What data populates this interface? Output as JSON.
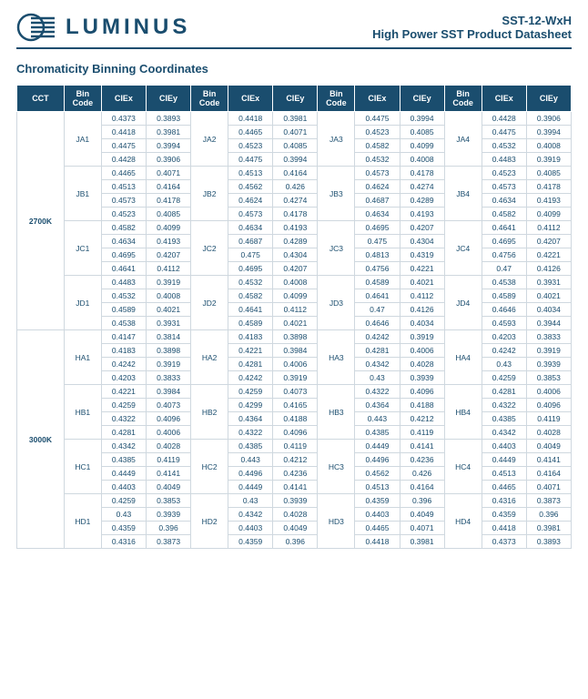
{
  "header": {
    "brand": "LUMINUS",
    "product_code": "SST-12-WxH",
    "product_desc": "High Power SST Product Datasheet"
  },
  "section_title": "Chromaticity Binning Coordinates",
  "columns": {
    "cct": "CCT",
    "bin": "Bin Code",
    "ciex": "CIEx",
    "ciey": "CIEy"
  },
  "groups": [
    {
      "cct": "2700K",
      "rows": [
        {
          "letter": "A",
          "bins": [
            {
              "code": "JA1",
              "pts": [
                [
                  0.4373,
                  0.3893
                ],
                [
                  0.4418,
                  0.3981
                ],
                [
                  0.4475,
                  0.3994
                ],
                [
                  0.4428,
                  0.3906
                ]
              ]
            },
            {
              "code": "JA2",
              "pts": [
                [
                  0.4418,
                  0.3981
                ],
                [
                  0.4465,
                  0.4071
                ],
                [
                  0.4523,
                  0.4085
                ],
                [
                  0.4475,
                  0.3994
                ]
              ]
            },
            {
              "code": "JA3",
              "pts": [
                [
                  0.4475,
                  0.3994
                ],
                [
                  0.4523,
                  0.4085
                ],
                [
                  0.4582,
                  0.4099
                ],
                [
                  0.4532,
                  0.4008
                ]
              ]
            },
            {
              "code": "JA4",
              "pts": [
                [
                  0.4428,
                  0.3906
                ],
                [
                  0.4475,
                  0.3994
                ],
                [
                  0.4532,
                  0.4008
                ],
                [
                  0.4483,
                  0.3919
                ]
              ]
            }
          ]
        },
        {
          "letter": "B",
          "bins": [
            {
              "code": "JB1",
              "pts": [
                [
                  0.4465,
                  0.4071
                ],
                [
                  0.4513,
                  0.4164
                ],
                [
                  0.4573,
                  0.4178
                ],
                [
                  0.4523,
                  0.4085
                ]
              ]
            },
            {
              "code": "JB2",
              "pts": [
                [
                  0.4513,
                  0.4164
                ],
                [
                  0.4562,
                  0.426
                ],
                [
                  0.4624,
                  0.4274
                ],
                [
                  0.4573,
                  0.4178
                ]
              ]
            },
            {
              "code": "JB3",
              "pts": [
                [
                  0.4573,
                  0.4178
                ],
                [
                  0.4624,
                  0.4274
                ],
                [
                  0.4687,
                  0.4289
                ],
                [
                  0.4634,
                  0.4193
                ]
              ]
            },
            {
              "code": "JB4",
              "pts": [
                [
                  0.4523,
                  0.4085
                ],
                [
                  0.4573,
                  0.4178
                ],
                [
                  0.4634,
                  0.4193
                ],
                [
                  0.4582,
                  0.4099
                ]
              ]
            }
          ]
        },
        {
          "letter": "C",
          "bins": [
            {
              "code": "JC1",
              "pts": [
                [
                  0.4582,
                  0.4099
                ],
                [
                  0.4634,
                  0.4193
                ],
                [
                  0.4695,
                  0.4207
                ],
                [
                  0.4641,
                  0.4112
                ]
              ]
            },
            {
              "code": "JC2",
              "pts": [
                [
                  0.4634,
                  0.4193
                ],
                [
                  0.4687,
                  0.4289
                ],
                [
                  0.475,
                  0.4304
                ],
                [
                  0.4695,
                  0.4207
                ]
              ]
            },
            {
              "code": "JC3",
              "pts": [
                [
                  0.4695,
                  0.4207
                ],
                [
                  0.475,
                  0.4304
                ],
                [
                  0.4813,
                  0.4319
                ],
                [
                  0.4756,
                  0.4221
                ]
              ]
            },
            {
              "code": "JC4",
              "pts": [
                [
                  0.4641,
                  0.4112
                ],
                [
                  0.4695,
                  0.4207
                ],
                [
                  0.4756,
                  0.4221
                ],
                [
                  0.47,
                  0.4126
                ]
              ]
            }
          ]
        },
        {
          "letter": "D",
          "bins": [
            {
              "code": "JD1",
              "pts": [
                [
                  0.4483,
                  0.3919
                ],
                [
                  0.4532,
                  0.4008
                ],
                [
                  0.4589,
                  0.4021
                ],
                [
                  0.4538,
                  0.3931
                ]
              ]
            },
            {
              "code": "JD2",
              "pts": [
                [
                  0.4532,
                  0.4008
                ],
                [
                  0.4582,
                  0.4099
                ],
                [
                  0.4641,
                  0.4112
                ],
                [
                  0.4589,
                  0.4021
                ]
              ]
            },
            {
              "code": "JD3",
              "pts": [
                [
                  0.4589,
                  0.4021
                ],
                [
                  0.4641,
                  0.4112
                ],
                [
                  0.47,
                  0.4126
                ],
                [
                  0.4646,
                  0.4034
                ]
              ]
            },
            {
              "code": "JD4",
              "pts": [
                [
                  0.4538,
                  0.3931
                ],
                [
                  0.4589,
                  0.4021
                ],
                [
                  0.4646,
                  0.4034
                ],
                [
                  0.4593,
                  0.3944
                ]
              ]
            }
          ]
        }
      ]
    },
    {
      "cct": "3000K",
      "rows": [
        {
          "letter": "A",
          "bins": [
            {
              "code": "HA1",
              "pts": [
                [
                  0.4147,
                  0.3814
                ],
                [
                  0.4183,
                  0.3898
                ],
                [
                  0.4242,
                  0.3919
                ],
                [
                  0.4203,
                  0.3833
                ]
              ]
            },
            {
              "code": "HA2",
              "pts": [
                [
                  0.4183,
                  0.3898
                ],
                [
                  0.4221,
                  0.3984
                ],
                [
                  0.4281,
                  0.4006
                ],
                [
                  0.4242,
                  0.3919
                ]
              ]
            },
            {
              "code": "HA3",
              "pts": [
                [
                  0.4242,
                  0.3919
                ],
                [
                  0.4281,
                  0.4006
                ],
                [
                  0.4342,
                  0.4028
                ],
                [
                  0.43,
                  0.3939
                ]
              ]
            },
            {
              "code": "HA4",
              "pts": [
                [
                  0.4203,
                  0.3833
                ],
                [
                  0.4242,
                  0.3919
                ],
                [
                  0.43,
                  0.3939
                ],
                [
                  0.4259,
                  0.3853
                ]
              ]
            }
          ]
        },
        {
          "letter": "B",
          "bins": [
            {
              "code": "HB1",
              "pts": [
                [
                  0.4221,
                  0.3984
                ],
                [
                  0.4259,
                  0.4073
                ],
                [
                  0.4322,
                  0.4096
                ],
                [
                  0.4281,
                  0.4006
                ]
              ]
            },
            {
              "code": "HB2",
              "pts": [
                [
                  0.4259,
                  0.4073
                ],
                [
                  0.4299,
                  0.4165
                ],
                [
                  0.4364,
                  0.4188
                ],
                [
                  0.4322,
                  0.4096
                ]
              ]
            },
            {
              "code": "HB3",
              "pts": [
                [
                  0.4322,
                  0.4096
                ],
                [
                  0.4364,
                  0.4188
                ],
                [
                  0.443,
                  0.4212
                ],
                [
                  0.4385,
                  0.4119
                ]
              ]
            },
            {
              "code": "HB4",
              "pts": [
                [
                  0.4281,
                  0.4006
                ],
                [
                  0.4322,
                  0.4096
                ],
                [
                  0.4385,
                  0.4119
                ],
                [
                  0.4342,
                  0.4028
                ]
              ]
            }
          ]
        },
        {
          "letter": "C",
          "bins": [
            {
              "code": "HC1",
              "pts": [
                [
                  0.4342,
                  0.4028
                ],
                [
                  0.4385,
                  0.4119
                ],
                [
                  0.4449,
                  0.4141
                ],
                [
                  0.4403,
                  0.4049
                ]
              ]
            },
            {
              "code": "HC2",
              "pts": [
                [
                  0.4385,
                  0.4119
                ],
                [
                  0.443,
                  0.4212
                ],
                [
                  0.4496,
                  0.4236
                ],
                [
                  0.4449,
                  0.4141
                ]
              ]
            },
            {
              "code": "HC3",
              "pts": [
                [
                  0.4449,
                  0.4141
                ],
                [
                  0.4496,
                  0.4236
                ],
                [
                  0.4562,
                  0.426
                ],
                [
                  0.4513,
                  0.4164
                ]
              ]
            },
            {
              "code": "HC4",
              "pts": [
                [
                  0.4403,
                  0.4049
                ],
                [
                  0.4449,
                  0.4141
                ],
                [
                  0.4513,
                  0.4164
                ],
                [
                  0.4465,
                  0.4071
                ]
              ]
            }
          ]
        },
        {
          "letter": "D",
          "bins": [
            {
              "code": "HD1",
              "pts": [
                [
                  0.4259,
                  0.3853
                ],
                [
                  0.43,
                  0.3939
                ],
                [
                  0.4359,
                  0.396
                ],
                [
                  0.4316,
                  0.3873
                ]
              ]
            },
            {
              "code": "HD2",
              "pts": [
                [
                  0.43,
                  0.3939
                ],
                [
                  0.4342,
                  0.4028
                ],
                [
                  0.4403,
                  0.4049
                ],
                [
                  0.4359,
                  0.396
                ]
              ]
            },
            {
              "code": "HD3",
              "pts": [
                [
                  0.4359,
                  0.396
                ],
                [
                  0.4403,
                  0.4049
                ],
                [
                  0.4465,
                  0.4071
                ],
                [
                  0.4418,
                  0.3981
                ]
              ]
            },
            {
              "code": "HD4",
              "pts": [
                [
                  0.4316,
                  0.3873
                ],
                [
                  0.4359,
                  0.396
                ],
                [
                  0.4418,
                  0.3981
                ],
                [
                  0.4373,
                  0.3893
                ]
              ]
            }
          ]
        }
      ]
    }
  ]
}
